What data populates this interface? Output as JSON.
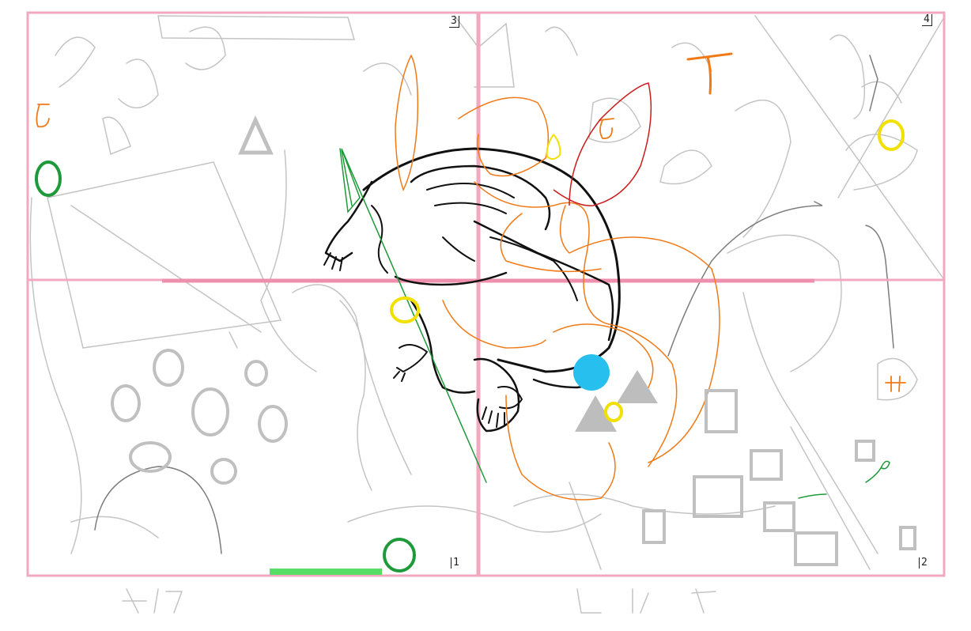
{
  "quadrants": [
    {
      "label": "3"
    },
    {
      "label": "4"
    },
    {
      "label": "1"
    },
    {
      "label": "2"
    }
  ],
  "progress": {
    "fraction": 1.0
  },
  "colors": {
    "grid": "#f2a9c0",
    "sketch": "#bdbdbd",
    "ink": "#111111",
    "orange": "#f07a18",
    "red": "#c81e1e",
    "green": "#1f9a3a",
    "yellow": "#f2e000",
    "blue": "#27c0ee",
    "shape_gray": "#bdbdbd",
    "bar": "#55dd66"
  },
  "icons": {
    "figure": "curled-figure-icon",
    "blue_dot": "blue-dot-icon"
  }
}
